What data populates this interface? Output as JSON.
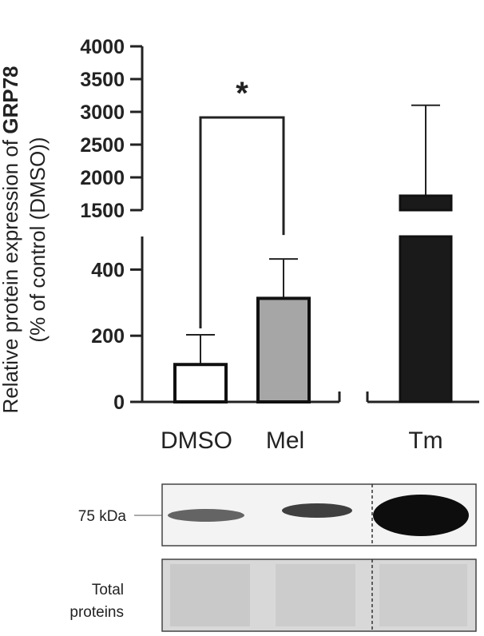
{
  "chart_data": {
    "type": "bar",
    "ylabel_line1_prefix": "Relative protein expression of ",
    "ylabel_line1_bold": "GRP78",
    "ylabel_line2": "(% of control (DMSO))",
    "axis_break": true,
    "ylim_lower": [
      0,
      500
    ],
    "ylim_upper": [
      1500,
      4000
    ],
    "lower_ticks": [
      "0",
      "200",
      "400"
    ],
    "upper_ticks": [
      "1500",
      "2000",
      "2500",
      "3000",
      "3500",
      "4000"
    ],
    "categories": [
      "DMSO",
      "Mel",
      "Tm"
    ],
    "values": [
      113,
      313,
      1720
    ],
    "error_upper": [
      203,
      432,
      3100
    ],
    "bar_colors": [
      "#ffffff",
      "#a6a6a6",
      "#1a1a1a"
    ],
    "significance": {
      "between": [
        "DMSO",
        "Mel"
      ],
      "label": "*"
    }
  },
  "blot": {
    "band_label": "75 kDa",
    "loading_label_line1": "Total",
    "loading_label_line2": "proteins"
  }
}
